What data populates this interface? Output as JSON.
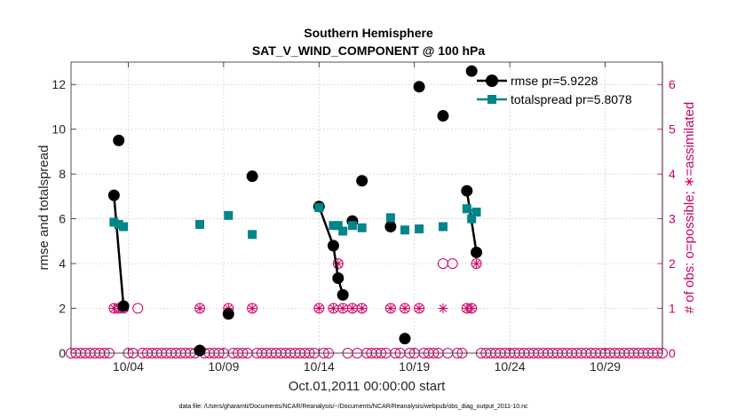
{
  "chart_data": {
    "type": "line",
    "title": "Southern Hemisphere",
    "subtitle": "SAT_V_WIND_COMPONENT @ 100 hPa",
    "xlabel": "Oct.01,2011 00:00:00 start",
    "ylabel": "rmse and totalspread",
    "y2label": "# of obs: o=possible; ∗=assimilated",
    "footnote": "data file: /Users/gharamti/Documents/NCAR/Reanalysis/~/Documents/NCAR/Reanalysis/webpub/obs_diag_output_2011-10.nc",
    "xlim": [
      1,
      32
    ],
    "ylim": [
      0,
      13
    ],
    "y2lim": [
      0,
      6.5
    ],
    "x_ticks": [
      4,
      9,
      14,
      19,
      24,
      29
    ],
    "x_tick_labels": [
      "10/04",
      "10/09",
      "10/14",
      "10/19",
      "10/24",
      "10/29"
    ],
    "y_ticks": [
      0,
      2,
      4,
      6,
      8,
      10,
      12
    ],
    "y2_ticks": [
      0,
      1,
      2,
      3,
      4,
      5,
      6
    ],
    "colors": {
      "rmse": "#000000",
      "totalspread": "#00858a",
      "obs": "#cc0066"
    },
    "series": [
      {
        "name": "rmse",
        "legend": "rmse pr=5.9228",
        "x": [
          3.25,
          3.5,
          3.75,
          7.75,
          9.25,
          10.5,
          14.0,
          14.75,
          15.0,
          15.25,
          15.75,
          16.25,
          17.75,
          18.5,
          19.25,
          20.5,
          21.75,
          22.0,
          22.25
        ],
        "values": [
          7.05,
          9.5,
          2.1,
          0.12,
          1.75,
          7.9,
          6.55,
          4.8,
          3.35,
          2.6,
          5.9,
          7.7,
          5.65,
          0.65,
          11.9,
          10.6,
          7.25,
          12.6,
          4.5
        ],
        "segments": [
          [
            0,
            2
          ],
          [
            4,
            4
          ],
          [
            6,
            7,
            8,
            9
          ],
          [
            16,
            18
          ]
        ]
      },
      {
        "name": "totalspread",
        "legend": "totalspread pr=5.8078",
        "x": [
          3.25,
          3.5,
          3.75,
          7.75,
          9.25,
          10.5,
          14.0,
          14.75,
          15.0,
          15.25,
          15.75,
          16.25,
          17.75,
          18.5,
          19.25,
          20.5,
          21.75,
          22.0,
          22.25
        ],
        "values": [
          5.85,
          5.75,
          5.65,
          5.75,
          6.15,
          5.3,
          6.5,
          5.7,
          5.7,
          5.45,
          5.7,
          5.6,
          6.05,
          5.5,
          5.55,
          5.65,
          6.45,
          6.0,
          6.3
        ],
        "segments": [
          [
            0,
            2
          ],
          [
            16,
            18
          ]
        ]
      }
    ],
    "obs_possible": [
      {
        "x": 1.0,
        "n": 0
      },
      {
        "x": 1.25,
        "n": 0
      },
      {
        "x": 1.5,
        "n": 0
      },
      {
        "x": 1.75,
        "n": 0
      },
      {
        "x": 2.0,
        "n": 0
      },
      {
        "x": 2.25,
        "n": 0
      },
      {
        "x": 2.5,
        "n": 0
      },
      {
        "x": 2.75,
        "n": 0
      },
      {
        "x": 3.0,
        "n": 0
      },
      {
        "x": 3.25,
        "n": 1
      },
      {
        "x": 3.5,
        "n": 1
      },
      {
        "x": 3.75,
        "n": 1
      },
      {
        "x": 4.0,
        "n": 0
      },
      {
        "x": 4.25,
        "n": 0
      },
      {
        "x": 4.5,
        "n": 1
      },
      {
        "x": 4.75,
        "n": 0
      },
      {
        "x": 5.0,
        "n": 0
      },
      {
        "x": 5.25,
        "n": 0
      },
      {
        "x": 5.5,
        "n": 0
      },
      {
        "x": 5.75,
        "n": 0
      },
      {
        "x": 6.0,
        "n": 0
      },
      {
        "x": 6.25,
        "n": 0
      },
      {
        "x": 6.5,
        "n": 0
      },
      {
        "x": 6.75,
        "n": 0
      },
      {
        "x": 7.0,
        "n": 0
      },
      {
        "x": 7.25,
        "n": 0
      },
      {
        "x": 7.5,
        "n": 0
      },
      {
        "x": 7.75,
        "n": 1
      },
      {
        "x": 8.0,
        "n": 0
      },
      {
        "x": 8.25,
        "n": 0
      },
      {
        "x": 8.5,
        "n": 0
      },
      {
        "x": 8.75,
        "n": 0
      },
      {
        "x": 9.0,
        "n": 0
      },
      {
        "x": 9.25,
        "n": 1
      },
      {
        "x": 9.5,
        "n": 0
      },
      {
        "x": 9.75,
        "n": 0
      },
      {
        "x": 10.0,
        "n": 0
      },
      {
        "x": 10.25,
        "n": 0
      },
      {
        "x": 10.5,
        "n": 1
      },
      {
        "x": 10.75,
        "n": 0
      },
      {
        "x": 11.0,
        "n": 0
      },
      {
        "x": 11.25,
        "n": 0
      },
      {
        "x": 11.5,
        "n": 0
      },
      {
        "x": 11.75,
        "n": 0
      },
      {
        "x": 12.0,
        "n": 0
      },
      {
        "x": 12.25,
        "n": 0
      },
      {
        "x": 12.5,
        "n": 0
      },
      {
        "x": 12.75,
        "n": 0
      },
      {
        "x": 13.0,
        "n": 0
      },
      {
        "x": 13.25,
        "n": 0
      },
      {
        "x": 13.5,
        "n": 0
      },
      {
        "x": 13.75,
        "n": 0
      },
      {
        "x": 14.0,
        "n": 1
      },
      {
        "x": 14.25,
        "n": 0
      },
      {
        "x": 14.5,
        "n": 0
      },
      {
        "x": 14.75,
        "n": 1
      },
      {
        "x": 15.0,
        "n": 2
      },
      {
        "x": 15.25,
        "n": 1
      },
      {
        "x": 15.5,
        "n": 0
      },
      {
        "x": 15.75,
        "n": 1
      },
      {
        "x": 16.0,
        "n": 0
      },
      {
        "x": 16.25,
        "n": 1
      },
      {
        "x": 16.5,
        "n": 0
      },
      {
        "x": 16.75,
        "n": 0
      },
      {
        "x": 17.0,
        "n": 0
      },
      {
        "x": 17.25,
        "n": 0
      },
      {
        "x": 17.5,
        "n": 0
      },
      {
        "x": 17.75,
        "n": 1
      },
      {
        "x": 18.0,
        "n": 0
      },
      {
        "x": 18.25,
        "n": 0
      },
      {
        "x": 18.5,
        "n": 1
      },
      {
        "x": 18.75,
        "n": 0
      },
      {
        "x": 19.0,
        "n": 0
      },
      {
        "x": 19.25,
        "n": 1
      },
      {
        "x": 19.5,
        "n": 0
      },
      {
        "x": 19.75,
        "n": 0
      },
      {
        "x": 20.0,
        "n": 0
      },
      {
        "x": 20.25,
        "n": 0
      },
      {
        "x": 20.5,
        "n": 2
      },
      {
        "x": 20.75,
        "n": 0
      },
      {
        "x": 21.0,
        "n": 2
      },
      {
        "x": 21.25,
        "n": 0
      },
      {
        "x": 21.5,
        "n": 0
      },
      {
        "x": 21.75,
        "n": 1
      },
      {
        "x": 22.0,
        "n": 1
      },
      {
        "x": 22.25,
        "n": 2
      },
      {
        "x": 22.5,
        "n": 0
      },
      {
        "x": 22.75,
        "n": 0
      },
      {
        "x": 23.0,
        "n": 0
      },
      {
        "x": 23.25,
        "n": 0
      },
      {
        "x": 23.5,
        "n": 0
      },
      {
        "x": 23.75,
        "n": 0
      },
      {
        "x": 24.0,
        "n": 0
      },
      {
        "x": 24.25,
        "n": 0
      },
      {
        "x": 24.5,
        "n": 0
      },
      {
        "x": 24.75,
        "n": 0
      },
      {
        "x": 25.0,
        "n": 0
      },
      {
        "x": 25.25,
        "n": 0
      },
      {
        "x": 25.5,
        "n": 0
      },
      {
        "x": 25.75,
        "n": 0
      },
      {
        "x": 26.0,
        "n": 0
      },
      {
        "x": 26.25,
        "n": 0
      },
      {
        "x": 26.5,
        "n": 0
      },
      {
        "x": 26.75,
        "n": 0
      },
      {
        "x": 27.0,
        "n": 0
      },
      {
        "x": 27.25,
        "n": 0
      },
      {
        "x": 27.5,
        "n": 0
      },
      {
        "x": 27.75,
        "n": 0
      },
      {
        "x": 28.0,
        "n": 0
      },
      {
        "x": 28.25,
        "n": 0
      },
      {
        "x": 28.5,
        "n": 0
      },
      {
        "x": 28.75,
        "n": 0
      },
      {
        "x": 29.0,
        "n": 0
      },
      {
        "x": 29.25,
        "n": 0
      },
      {
        "x": 29.5,
        "n": 0
      },
      {
        "x": 29.75,
        "n": 0
      },
      {
        "x": 30.0,
        "n": 0
      },
      {
        "x": 30.25,
        "n": 0
      },
      {
        "x": 30.5,
        "n": 0
      },
      {
        "x": 30.75,
        "n": 0
      },
      {
        "x": 31.0,
        "n": 0
      },
      {
        "x": 31.25,
        "n": 0
      },
      {
        "x": 31.5,
        "n": 0
      },
      {
        "x": 31.75,
        "n": 0
      },
      {
        "x": 32.0,
        "n": 0
      }
    ],
    "obs_assimilated": [
      {
        "x": 3.25,
        "n": 1
      },
      {
        "x": 3.5,
        "n": 1
      },
      {
        "x": 3.75,
        "n": 1
      },
      {
        "x": 7.75,
        "n": 1
      },
      {
        "x": 9.25,
        "n": 1
      },
      {
        "x": 10.5,
        "n": 1
      },
      {
        "x": 14.0,
        "n": 1
      },
      {
        "x": 14.75,
        "n": 1
      },
      {
        "x": 15.0,
        "n": 2
      },
      {
        "x": 15.25,
        "n": 1
      },
      {
        "x": 15.75,
        "n": 1
      },
      {
        "x": 16.25,
        "n": 1
      },
      {
        "x": 17.75,
        "n": 1
      },
      {
        "x": 18.5,
        "n": 1
      },
      {
        "x": 19.25,
        "n": 1
      },
      {
        "x": 20.5,
        "n": 1
      },
      {
        "x": 21.75,
        "n": 1
      },
      {
        "x": 22.0,
        "n": 1
      },
      {
        "x": 22.25,
        "n": 2
      }
    ]
  }
}
